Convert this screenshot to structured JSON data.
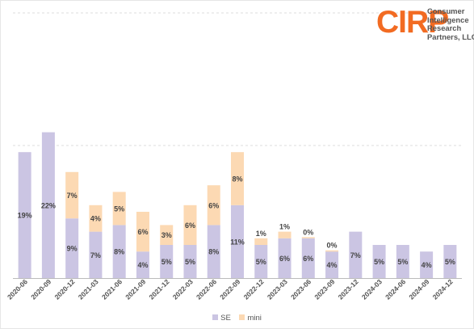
{
  "logo": {
    "mark": "CIRP",
    "lines": [
      "Consumer",
      "Intelligence",
      "Research",
      "Partners, LLC"
    ]
  },
  "colors": {
    "se": "#cbc5e3",
    "mini": "#fcd9b3",
    "logo_accent": "#f26b22",
    "gridline": "#dddddd",
    "axis": "#bbbbbb",
    "label_text": "#444444"
  },
  "chart_data": {
    "type": "bar",
    "stacked": true,
    "categories": [
      "2020-06",
      "2020-09",
      "2020-12",
      "2021-03",
      "2021-06",
      "2021-09",
      "2021-12",
      "2022-03",
      "2022-06",
      "2022-09",
      "2022-12",
      "2023-03",
      "2023-06",
      "2023-09",
      "2023-12",
      "2024-03",
      "2024-06",
      "2024-09",
      "2024-12"
    ],
    "series": [
      {
        "name": "SE",
        "color": "#cbc5e3",
        "values": [
          19,
          22,
          9,
          7,
          8,
          4,
          5,
          5,
          8,
          11,
          5,
          6,
          6,
          4,
          7,
          5,
          5,
          4,
          5
        ]
      },
      {
        "name": "mini",
        "color": "#fcd9b3",
        "values": [
          null,
          null,
          7,
          4,
          5,
          6,
          3,
          6,
          6,
          8,
          1,
          1,
          0,
          0,
          null,
          null,
          null,
          null,
          null
        ]
      }
    ],
    "labels": {
      "SE": [
        "19%",
        "22%",
        "9%",
        "7%",
        "8%",
        "4%",
        "5%",
        "5%",
        "8%",
        "11%",
        "5%",
        "6%",
        "6%",
        "4%",
        "7%",
        "5%",
        "5%",
        "4%",
        "5%"
      ],
      "mini": [
        "",
        "",
        "7%",
        "4%",
        "5%",
        "6%",
        "3%",
        "6%",
        "6%",
        "8%",
        "1%",
        "1%",
        "0%",
        "0%",
        "",
        "",
        "",
        "",
        ""
      ]
    },
    "ylim": [
      0,
      40
    ],
    "gridlines": [
      20,
      40
    ],
    "legend": {
      "position": "bottom",
      "entries": [
        "SE",
        "mini"
      ]
    },
    "title": "",
    "xlabel": "",
    "ylabel": ""
  }
}
